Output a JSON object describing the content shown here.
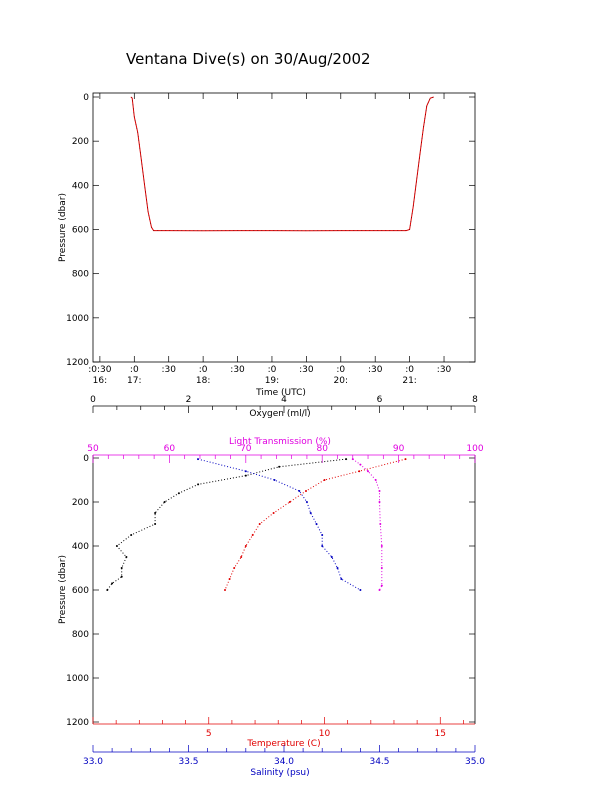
{
  "page": {
    "title": "Ventana Dive(s) on 30/Aug/2002"
  },
  "chart_data": [
    {
      "type": "line",
      "name": "pressure-vs-time",
      "ylabel": "Pressure (dbar)",
      "xlabel": "Time (UTC)",
      "ylim": [
        0,
        1200
      ],
      "y_inverted": true,
      "y_ticks": [
        "0",
        "200",
        "400",
        "600",
        "800",
        "1000",
        "1200"
      ],
      "x_ticks": [
        {
          "top": ":0:30",
          "bottom": "16:"
        },
        {
          "top": ":0",
          "bottom": "17:"
        },
        {
          "top": ":30",
          "bottom": ""
        },
        {
          "top": ":0",
          "bottom": "18:"
        },
        {
          "top": ":30",
          "bottom": ""
        },
        {
          "top": ":0",
          "bottom": "19:"
        },
        {
          "top": ":30",
          "bottom": ""
        },
        {
          "top": ":0",
          "bottom": "20:"
        },
        {
          "top": ":30",
          "bottom": ""
        },
        {
          "top": ":0",
          "bottom": "21:"
        },
        {
          "top": ":30",
          "bottom": ""
        }
      ],
      "xlim_hours": [
        16.4,
        21.95
      ],
      "series": [
        {
          "color": "#e00000",
          "x_hours": [
            16.95,
            16.97,
            17.0,
            17.05,
            17.1,
            17.15,
            17.2,
            17.25,
            17.28,
            17.5,
            18.0,
            18.5,
            19.0,
            19.5,
            20.0,
            20.5,
            20.95,
            21.0,
            21.05,
            21.1,
            21.15,
            21.2,
            21.25,
            21.3,
            21.35
          ],
          "pressure": [
            0,
            5,
            90,
            160,
            280,
            400,
            520,
            590,
            605,
            605,
            606,
            605,
            605,
            606,
            605,
            605,
            605,
            600,
            500,
            380,
            260,
            140,
            40,
            5,
            0
          ]
        }
      ]
    },
    {
      "type": "scatter",
      "name": "profiles",
      "ylabel": "Pressure (dbar)",
      "ylim": [
        0,
        1200
      ],
      "y_inverted": true,
      "y_ticks": [
        "0",
        "200",
        "400",
        "600",
        "800",
        "1000",
        "1200"
      ],
      "axes": {
        "oxygen": {
          "label": "Oxygen (ml/l)",
          "range": [
            0,
            8
          ],
          "ticks": [
            "0",
            "2",
            "4",
            "6",
            "8"
          ],
          "color": "#000000"
        },
        "light": {
          "label": "Light Transmission (%)",
          "range": [
            50,
            100
          ],
          "ticks": [
            "50",
            "60",
            "70",
            "80",
            "90",
            "100"
          ],
          "color": "#e000e0"
        },
        "temperature": {
          "label": "Temperature (C)",
          "range": [
            0,
            16.5
          ],
          "ticks": [
            "5",
            "10",
            "15"
          ],
          "color": "#e00000"
        },
        "salinity": {
          "label": "Salinity (psu)",
          "range": [
            33.0,
            35.0
          ],
          "ticks": [
            "33.0",
            "33.5",
            "34.0",
            "34.5",
            "35.0"
          ],
          "color": "#0000c0"
        }
      },
      "series": [
        {
          "axis": "oxygen",
          "color": "#000000",
          "pressure": [
            5,
            40,
            80,
            120,
            160,
            200,
            250,
            300,
            350,
            400,
            450,
            500,
            540,
            570,
            600
          ],
          "values": [
            5.3,
            3.9,
            3.2,
            2.2,
            1.8,
            1.5,
            1.3,
            1.3,
            0.8,
            0.5,
            0.7,
            0.6,
            0.6,
            0.4,
            0.3
          ]
        },
        {
          "axis": "light",
          "color": "#e000e0",
          "pressure": [
            5,
            30,
            60,
            100,
            150,
            200,
            300,
            400,
            500,
            580,
            600
          ],
          "values": [
            84,
            85,
            86,
            87,
            87.5,
            87.5,
            87.6,
            87.8,
            87.8,
            87.8,
            87.5
          ]
        },
        {
          "axis": "temperature",
          "color": "#e00000",
          "pressure": [
            5,
            60,
            100,
            150,
            200,
            250,
            300,
            350,
            400,
            450,
            500,
            550,
            600
          ],
          "values": [
            13.5,
            11.5,
            10.0,
            9.2,
            8.5,
            7.8,
            7.2,
            6.9,
            6.6,
            6.4,
            6.1,
            5.9,
            5.7
          ]
        },
        {
          "axis": "salinity",
          "color": "#0000c0",
          "pressure": [
            5,
            60,
            100,
            150,
            200,
            250,
            300,
            350,
            400,
            450,
            500,
            550,
            600
          ],
          "values": [
            33.55,
            33.8,
            33.95,
            34.08,
            34.12,
            34.14,
            34.17,
            34.2,
            34.2,
            34.25,
            34.28,
            34.3,
            34.4
          ]
        }
      ]
    }
  ]
}
